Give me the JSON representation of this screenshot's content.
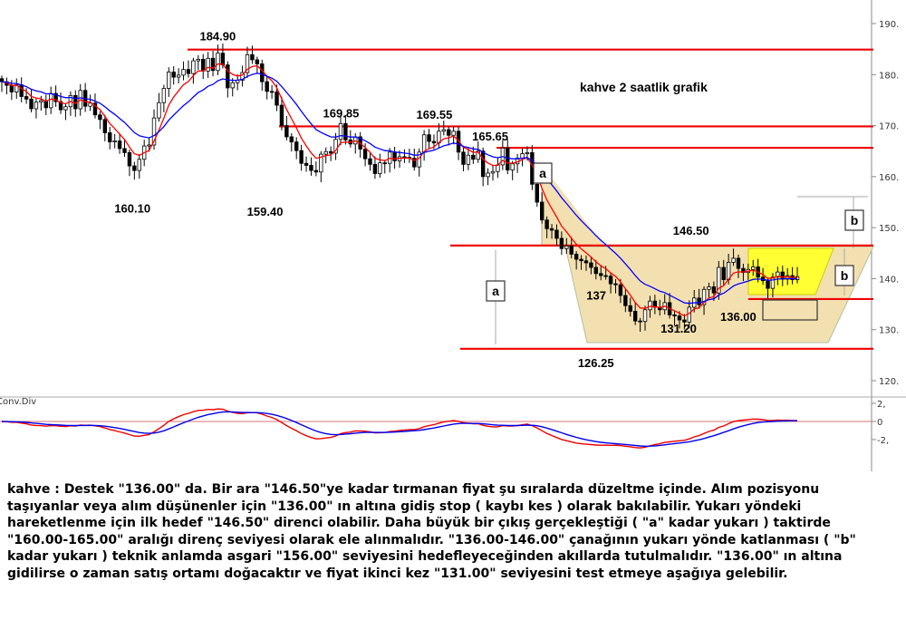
{
  "chart_data": {
    "type": "candlestick",
    "title": "kahve 2 saatlik grafik",
    "y_axis_ticks": [
      190,
      180,
      170,
      160,
      150,
      140,
      130,
      120
    ],
    "ylim": [
      113,
      197
    ],
    "resistance_lines": [
      184.9,
      169.85,
      165.65,
      146.5,
      136.0,
      126.25
    ],
    "price_labels": [
      {
        "text": "184.90",
        "value": 184.9,
        "bar": 44
      },
      {
        "text": "169.85",
        "value": 169.85,
        "bar": 68
      },
      {
        "text": "169.55",
        "value": 169.55,
        "bar": 87
      },
      {
        "text": "165.65",
        "value": 165.65,
        "bar": 98
      },
      {
        "text": "160.10",
        "value": 160.1,
        "bar": 27
      },
      {
        "text": "159.40",
        "value": 159.4,
        "bar": 54
      },
      {
        "text": "146.50",
        "value": 146.5,
        "bar": 140
      },
      {
        "text": "137",
        "value": 137,
        "bar": 122
      },
      {
        "text": "131.20",
        "value": 131.2,
        "bar": 136
      },
      {
        "text": "126.25",
        "value": 126.25,
        "bar": 121
      },
      {
        "text": "136.00",
        "value": 136.0,
        "bar": 150
      }
    ],
    "measure_labels": [
      "a",
      "a",
      "b",
      "b"
    ],
    "moving_averages": [
      {
        "color": "#ff0000"
      },
      {
        "color": "#0000ff"
      }
    ],
    "oscillator": {
      "name": "Conv.Div",
      "ticks": [
        "2,",
        "0",
        "-2,"
      ],
      "ylim": [
        -3.2,
        3.2
      ]
    },
    "closes": [
      178.6,
      177.9,
      176.6,
      178.0,
      175.7,
      175.2,
      173.3,
      174.6,
      174.9,
      173.5,
      176.3,
      174.7,
      173.1,
      173.7,
      175.9,
      173.3,
      176.9,
      173.8,
      174.4,
      172.1,
      171.2,
      168.6,
      166.8,
      167.0,
      165.5,
      164.7,
      162.1,
      161.2,
      163.4,
      166.0,
      166.2,
      171.5,
      174.5,
      177.3,
      180.5,
      179.5,
      179.9,
      181.0,
      180.2,
      182.7,
      183.0,
      180.7,
      183.2,
      180.8,
      184.2,
      181.9,
      177.4,
      178.4,
      178.9,
      180.4,
      183.9,
      182.9,
      182.1,
      178.6,
      176.7,
      176.6,
      174.0,
      170.0,
      167.8,
      166.8,
      165.1,
      162.6,
      162.2,
      161.2,
      160.9,
      164.4,
      164.9,
      164.6,
      167.3,
      170.4,
      167.2,
      166.4,
      167.8,
      165.4,
      163.5,
      162.4,
      160.6,
      162.7,
      162.6,
      164.8,
      163.1,
      163.9,
      163.8,
      163.6,
      161.9,
      164.8,
      168.2,
      166.9,
      166.6,
      168.9,
      169.2,
      168.1,
      168.9,
      164.8,
      162.4,
      164.2,
      163.4,
      165.0,
      160.0,
      160.7,
      161.0,
      162.3,
      165.6,
      161.3,
      162.5,
      163.6,
      164.5,
      164.7,
      158.5,
      155.0,
      151.5,
      149.8,
      149.5,
      147.9,
      145.9,
      146.4,
      144.8,
      143.8,
      143.5,
      143.1,
      142.2,
      141.0,
      140.6,
      140.5,
      139.0,
      138.8,
      136.7,
      134.7,
      133.6,
      131.7,
      131.6,
      133.9,
      135.6,
      134.4,
      133.9,
      135.3,
      132.9,
      132.7,
      131.9,
      131.5,
      134.4,
      136.2,
      134.9,
      137.9,
      138.4,
      137.2,
      142.2,
      139.8,
      143.2,
      144.0,
      142.0,
      141.2,
      141.8,
      142.3,
      140.3,
      139.6,
      138.1,
      140.3,
      141.3,
      139.9,
      140.6,
      139.8,
      140.4
    ]
  },
  "commentary": "kahve : Destek \"136.00\" da. Bir ara \"146.50\"ye kadar tırmanan fiyat şu sıralarda düzeltme içinde. Alım pozisyonu taşıyanlar veya alım düşünenler için \"136.00\" ın altına gidiş stop ( kaybı kes ) olarak bakılabilir. Yukarı yöndeki hareketlenme için ilk hedef \"146.50\" direnci olabilir. Daha büyük bir çıkış gerçekleştiği ( \"a\" kadar yukarı ) taktirde \"160.00-165.00\" aralığı direnç seviyesi olarak ele alınmalıdır. \"136.00-146.00\" çanağının yukarı yönde katlanması ( \"b\" kadar yukarı ) teknik anlamda asgari \"156.00\" seviyesini hedefleyeceğinden akıllarda tutulmalıdır. \"136.00\" ın altına gidilirse o zaman satış ortamı doğacaktır ve fiyat ikinci kez \"131.00\" seviyesini test etmeye aşağıya gelebilir."
}
